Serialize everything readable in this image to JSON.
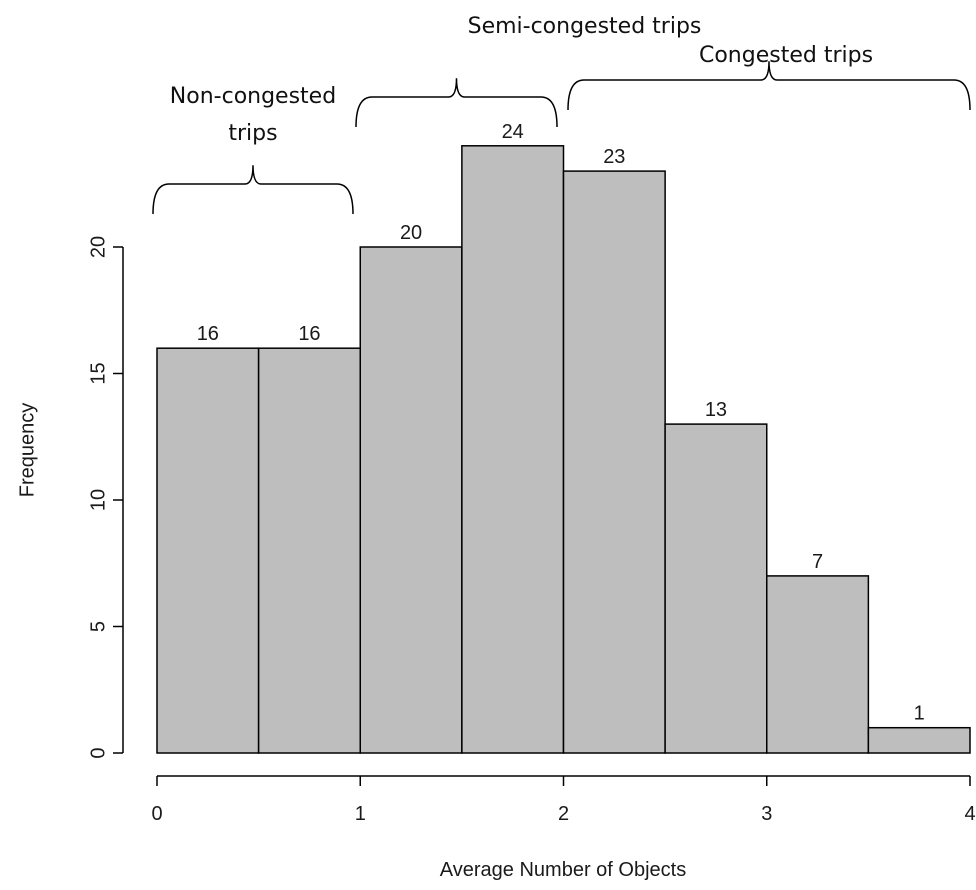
{
  "chart_data": {
    "type": "bar",
    "bins": [
      {
        "start": 0.0,
        "end": 0.5,
        "value": 16
      },
      {
        "start": 0.5,
        "end": 1.0,
        "value": 16
      },
      {
        "start": 1.0,
        "end": 1.5,
        "value": 20
      },
      {
        "start": 1.5,
        "end": 2.0,
        "value": 24
      },
      {
        "start": 2.0,
        "end": 2.5,
        "value": 23
      },
      {
        "start": 2.5,
        "end": 3.0,
        "value": 13
      },
      {
        "start": 3.0,
        "end": 3.5,
        "value": 7
      },
      {
        "start": 3.5,
        "end": 4.0,
        "value": 1
      }
    ],
    "data_labels": [
      "16",
      "16",
      "20",
      "24",
      "23",
      "13",
      "7",
      "1"
    ],
    "xlabel": "Average Number of Objects",
    "ylabel": "Frequency",
    "xlim": [
      0,
      4
    ],
    "ylim": [
      0,
      24
    ],
    "xticks": [
      0,
      1,
      2,
      3,
      4
    ],
    "xtick_labels": [
      "0",
      "1",
      "2",
      "3",
      "4"
    ],
    "yticks": [
      0,
      5,
      10,
      15,
      20
    ],
    "ytick_labels": [
      "0",
      "5",
      "10",
      "15",
      "20"
    ],
    "grid": false,
    "bar_color": "#bebebe",
    "annotations": [
      {
        "lines": [
          "Non-congested",
          "trips"
        ],
        "x_start": 0,
        "x_end": 1
      },
      {
        "lines": [
          "Semi-congested trips"
        ],
        "x_start": 1,
        "x_end": 2
      },
      {
        "lines": [
          "Congested trips"
        ],
        "x_start": 2,
        "x_end": 4
      }
    ]
  }
}
